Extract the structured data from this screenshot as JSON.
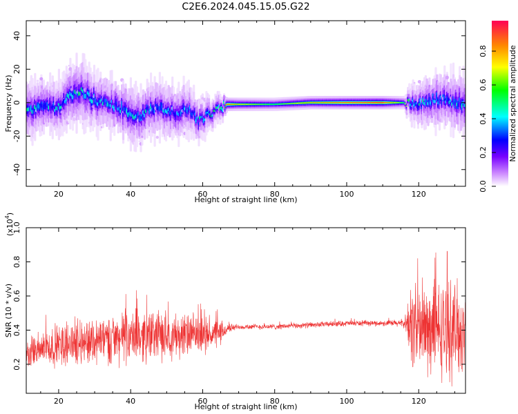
{
  "figure_title": "C2E6.2024.045.15.05.G22",
  "chart_data": [
    {
      "type": "heatmap",
      "xlabel": "Height of straight line (km)",
      "ylabel": "Frequency (Hz)",
      "xlim": [
        11,
        133
      ],
      "ylim": [
        -50,
        49
      ],
      "xticks": [
        20,
        40,
        60,
        80,
        100,
        120
      ],
      "yticks": [
        -40,
        -20,
        0,
        20,
        40
      ],
      "colorbar": {
        "label": "Normalized spectral amplitude",
        "range": [
          0,
          0.98
        ],
        "ticks": [
          0.0,
          0.2,
          0.4,
          0.6,
          0.8
        ],
        "colormap": [
          "#ffffff",
          "#cc88ff",
          "#7700ff",
          "#0000ff",
          "#00ffff",
          "#00ff00",
          "#ffff00",
          "#ff8800",
          "#ff0000"
        ]
      },
      "ridge": {
        "x": [
          11,
          14,
          17,
          20,
          23,
          26,
          29,
          32,
          35,
          38,
          41,
          44,
          47,
          50,
          53,
          56,
          59,
          62,
          65,
          67,
          70,
          80,
          90,
          100,
          110,
          116,
          119,
          122,
          125,
          128,
          131,
          133
        ],
        "freq": [
          -3,
          -4,
          -2,
          -3,
          4,
          7,
          3,
          0,
          -1,
          -4,
          -10,
          -6,
          -3,
          -4,
          -6,
          -3,
          -11,
          -7,
          -3,
          -1,
          -1,
          -1,
          0,
          0,
          0,
          0,
          -1,
          0,
          2,
          1,
          0,
          0
        ],
        "spread_hz": [
          9,
          10,
          9,
          9,
          10,
          11,
          10,
          9,
          9,
          10,
          10,
          9,
          9,
          9,
          9,
          8,
          7,
          5,
          4,
          2,
          2,
          2,
          2,
          2,
          2,
          2,
          7,
          8,
          9,
          9,
          10,
          9
        ],
        "peak_amplitude": [
          0.45,
          0.45,
          0.42,
          0.45,
          0.42,
          0.48,
          0.44,
          0.43,
          0.44,
          0.44,
          0.45,
          0.45,
          0.43,
          0.42,
          0.42,
          0.42,
          0.45,
          0.5,
          0.55,
          0.9,
          0.75,
          0.6,
          0.8,
          0.9,
          0.95,
          0.6,
          0.45,
          0.45,
          0.45,
          0.43,
          0.45,
          0.45
        ]
      }
    },
    {
      "type": "line",
      "xlabel": "Height of straight line (km)",
      "ylabel": "SNR (10 * v/v)",
      "y_scale_label": "(x10",
      "y_scale_exponent": "4",
      "xlim": [
        11,
        133
      ],
      "ylim": [
        0.03,
        1.0
      ],
      "xticks": [
        20,
        40,
        60,
        80,
        100,
        120
      ],
      "yticks": [
        0.2,
        0.4,
        0.6,
        0.8,
        1.0
      ],
      "color": "#ee3333",
      "series": [
        {
          "x": [
            11,
            15,
            20,
            25,
            30,
            35,
            40,
            45,
            50,
            55,
            60,
            65,
            67,
            70,
            80,
            90,
            100,
            110,
            116,
            118,
            122,
            126,
            130,
            133
          ],
          "mean": [
            0.26,
            0.29,
            0.31,
            0.33,
            0.34,
            0.35,
            0.36,
            0.37,
            0.37,
            0.37,
            0.37,
            0.38,
            0.41,
            0.42,
            0.42,
            0.43,
            0.44,
            0.44,
            0.44,
            0.42,
            0.4,
            0.4,
            0.4,
            0.4
          ],
          "envelope": [
            0.1,
            0.13,
            0.15,
            0.16,
            0.17,
            0.18,
            0.18,
            0.18,
            0.17,
            0.16,
            0.13,
            0.09,
            0.03,
            0.02,
            0.02,
            0.02,
            0.02,
            0.02,
            0.03,
            0.3,
            0.34,
            0.34,
            0.34,
            0.32
          ]
        }
      ]
    }
  ]
}
